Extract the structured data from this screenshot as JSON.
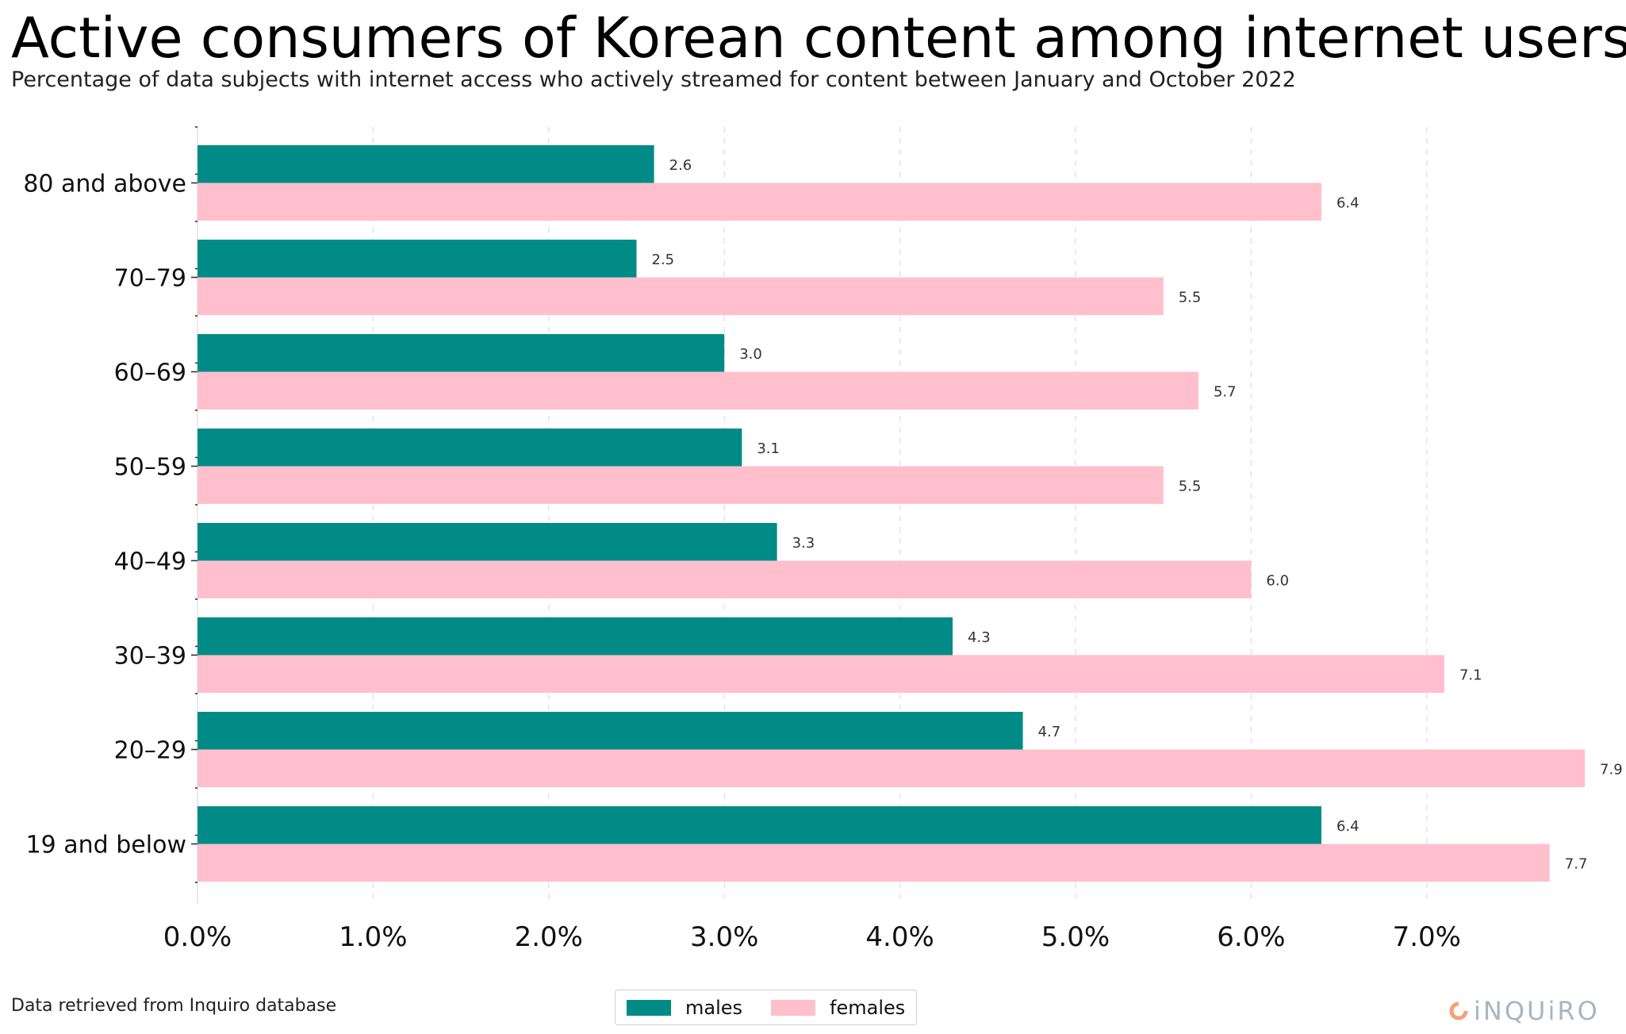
{
  "title": "Active consumers of Korean content among internet users",
  "subtitle": "Percentage of data subjects with internet access who actively streamed for content between January and October 2022",
  "source": "Data retrieved from Inquiro database",
  "logo_text": "iNQUiRO",
  "colors": {
    "males": "#008b87",
    "females": "#ffbfcc",
    "logo_icon": "#f4a07a",
    "logo_text": "#aab4c2",
    "grid": "#dddddd"
  },
  "legend": {
    "males": "males",
    "females": "females"
  },
  "chart_data": {
    "type": "bar",
    "orientation": "horizontal",
    "categories": [
      "80 and above",
      "70–79",
      "60–69",
      "50–59",
      "40–49",
      "30–39",
      "20–29",
      "19 and below"
    ],
    "series": [
      {
        "name": "males",
        "values": [
          2.6,
          2.5,
          3.0,
          3.1,
          3.3,
          4.3,
          4.7,
          6.4
        ],
        "labels": [
          "2.6",
          "2.5",
          "3.0",
          "3.1",
          "3.3",
          "4.3",
          "4.7",
          "6.4"
        ]
      },
      {
        "name": "females",
        "values": [
          6.4,
          5.5,
          5.7,
          5.5,
          6.0,
          7.1,
          7.9,
          7.7
        ],
        "labels": [
          "6.4",
          "5.5",
          "5.7",
          "5.5",
          "6.0",
          "7.1",
          "7.9",
          "7.7"
        ]
      }
    ],
    "xlim": [
      0,
      7.85
    ],
    "xticks": [
      0,
      1,
      2,
      3,
      4,
      5,
      6,
      7
    ],
    "xtick_labels": [
      "0.0%",
      "1.0%",
      "2.0%",
      "3.0%",
      "4.0%",
      "5.0%",
      "6.0%",
      "7.0%"
    ],
    "grid": "vertical dashed",
    "legend_position": "bottom-center",
    "xlabel": "",
    "ylabel": ""
  }
}
